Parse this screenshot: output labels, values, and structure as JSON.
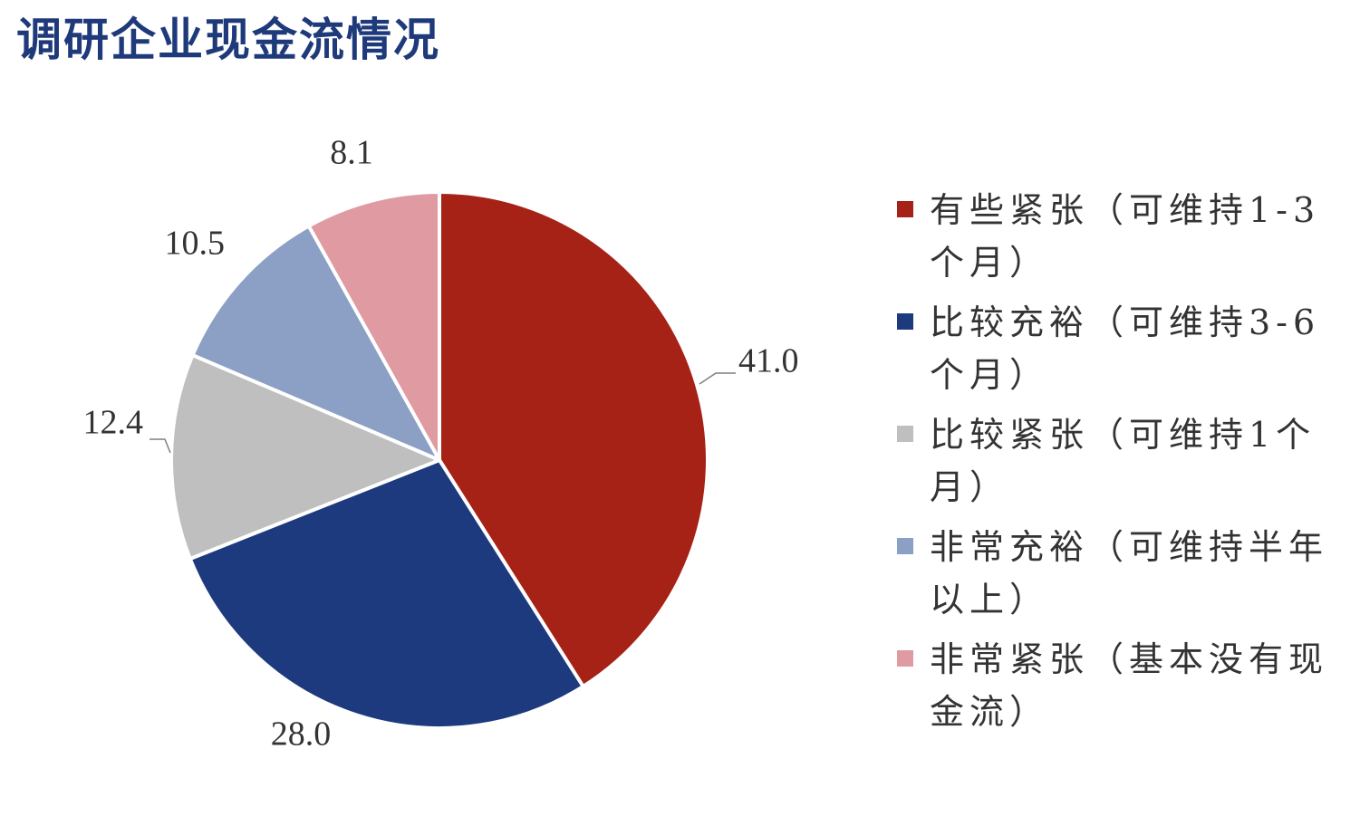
{
  "chart_data": {
    "type": "pie",
    "title": "调研企业现金流情况",
    "slices": [
      {
        "label": "有些紧张（可维持1-3个月）",
        "value": 41.0,
        "display": "41.0",
        "color": "#a62116"
      },
      {
        "label": "比较充裕（可维持3-6个月）",
        "value": 28.0,
        "display": "28.0",
        "color": "#1e3a7e"
      },
      {
        "label": "比较紧张（可维持1个月）",
        "value": 12.4,
        "display": "12.4",
        "color": "#bfbfbf"
      },
      {
        "label": "非常充裕（可维持半年以上）",
        "value": 10.5,
        "display": "10.5",
        "color": "#8c9fc4"
      },
      {
        "label": "非常紧张（基本没有现金流）",
        "value": 8.1,
        "display": "8.1",
        "color": "#e09aa2"
      }
    ],
    "start_angle_deg": 0,
    "direction": "clockwise",
    "legend_position": "right"
  }
}
